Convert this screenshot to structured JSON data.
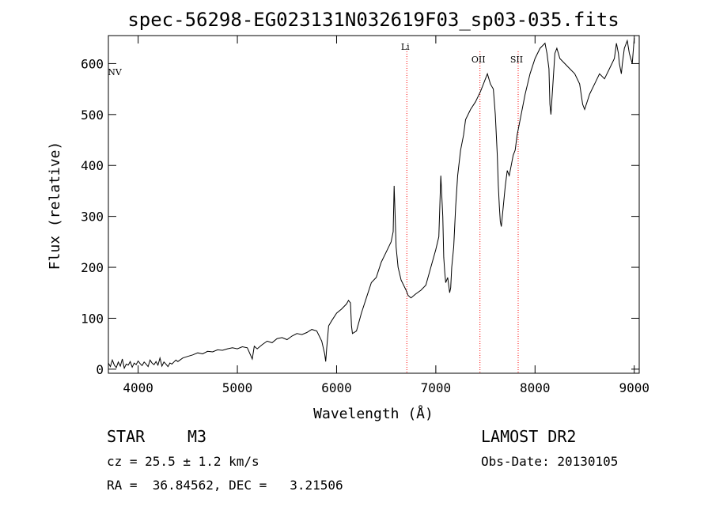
{
  "chart_data": {
    "type": "line",
    "title": "spec-56298-EG023131N032619F03_sp03-035.fits",
    "xlabel": "Wavelength (Å)",
    "ylabel": "Flux (relative)",
    "xlim": [
      3700,
      9050
    ],
    "ylim": [
      -8,
      655
    ],
    "xticks": [
      4000,
      5000,
      6000,
      7000,
      8000,
      9000
    ],
    "yticks": [
      0,
      100,
      200,
      300,
      400,
      500,
      600
    ],
    "line_color": "#000000",
    "marker_color": "#ff0000",
    "spectral_lines": [
      {
        "name": "NV",
        "wavelength": 3700
      },
      {
        "name": "Li",
        "wavelength": 6708
      },
      {
        "name": "OII",
        "wavelength": 7445
      },
      {
        "name": "SII",
        "wavelength": 7830
      }
    ],
    "series": [
      {
        "x": [
          3700,
          3720,
          3740,
          3760,
          3780,
          3800,
          3820,
          3840,
          3860,
          3880,
          3900,
          3920,
          3940,
          3960,
          3980,
          4000,
          4020,
          4040,
          4060,
          4080,
          4100,
          4120,
          4140,
          4160,
          4180,
          4200,
          4220,
          4240,
          4260,
          4280,
          4300,
          4320,
          4340,
          4360,
          4380,
          4400,
          4450,
          4500,
          4550,
          4600,
          4650,
          4700,
          4750,
          4800,
          4850,
          4900,
          4950,
          5000,
          5050,
          5100,
          5150,
          5170,
          5200,
          5250,
          5300,
          5350,
          5400,
          5450,
          5500,
          5550,
          5600,
          5650,
          5700,
          5750,
          5800,
          5850,
          5880,
          5890,
          5900,
          5920,
          5950,
          6000,
          6050,
          6100,
          6120,
          6140,
          6150,
          6160,
          6200,
          6250,
          6300,
          6350,
          6400,
          6450,
          6500,
          6550,
          6570,
          6580,
          6590,
          6600,
          6620,
          6650,
          6700,
          6720,
          6750,
          6800,
          6850,
          6900,
          6950,
          7000,
          7030,
          7050,
          7070,
          7080,
          7090,
          7100,
          7120,
          7140,
          7150,
          7160,
          7180,
          7200,
          7220,
          7250,
          7280,
          7300,
          7350,
          7400,
          7450,
          7480,
          7500,
          7520,
          7550,
          7580,
          7600,
          7620,
          7630,
          7640,
          7650,
          7660,
          7680,
          7700,
          7720,
          7740,
          7760,
          7780,
          7800,
          7820,
          7850,
          7900,
          7950,
          8000,
          8050,
          8100,
          8120,
          8140,
          8150,
          8160,
          8180,
          8200,
          8220,
          8250,
          8300,
          8350,
          8400,
          8450,
          8480,
          8500,
          8550,
          8600,
          8650,
          8700,
          8750,
          8800,
          8820,
          8840,
          8850,
          8870,
          8880,
          8900,
          8930,
          8950,
          8980,
          9000
        ],
        "y": [
          12,
          5,
          18,
          8,
          3,
          14,
          6,
          20,
          2,
          10,
          8,
          15,
          4,
          12,
          9,
          16,
          11,
          7,
          14,
          10,
          5,
          18,
          12,
          9,
          15,
          8,
          22,
          6,
          14,
          10,
          5,
          12,
          10,
          14,
          18,
          15,
          22,
          25,
          28,
          32,
          30,
          35,
          34,
          38,
          37,
          40,
          42,
          40,
          44,
          42,
          20,
          45,
          40,
          48,
          55,
          52,
          60,
          62,
          58,
          65,
          70,
          68,
          72,
          78,
          75,
          55,
          30,
          15,
          40,
          85,
          95,
          110,
          118,
          128,
          135,
          130,
          85,
          70,
          75,
          110,
          140,
          170,
          180,
          210,
          230,
          250,
          270,
          360,
          300,
          240,
          200,
          175,
          155,
          145,
          140,
          148,
          155,
          165,
          200,
          235,
          260,
          380,
          300,
          220,
          190,
          170,
          180,
          150,
          160,
          200,
          240,
          320,
          380,
          430,
          460,
          490,
          510,
          525,
          545,
          560,
          570,
          580,
          560,
          550,
          500,
          420,
          360,
          320,
          290,
          280,
          320,
          360,
          390,
          380,
          400,
          420,
          430,
          460,
          490,
          540,
          580,
          610,
          630,
          640,
          620,
          590,
          520,
          500,
          560,
          620,
          630,
          610,
          600,
          590,
          580,
          560,
          520,
          510,
          540,
          560,
          580,
          570,
          590,
          610,
          640,
          620,
          600,
          580,
          600,
          630,
          645,
          620,
          600,
          650
        ]
      }
    ]
  },
  "info": {
    "object_type": "STAR",
    "subclass": "M3",
    "survey": "LAMOST DR2",
    "cz": "cz = 25.5 ± 1.2 km/s",
    "obs_date": "Obs-Date: 20130105",
    "coords": "RA =  36.84562, DEC =   3.21506"
  }
}
